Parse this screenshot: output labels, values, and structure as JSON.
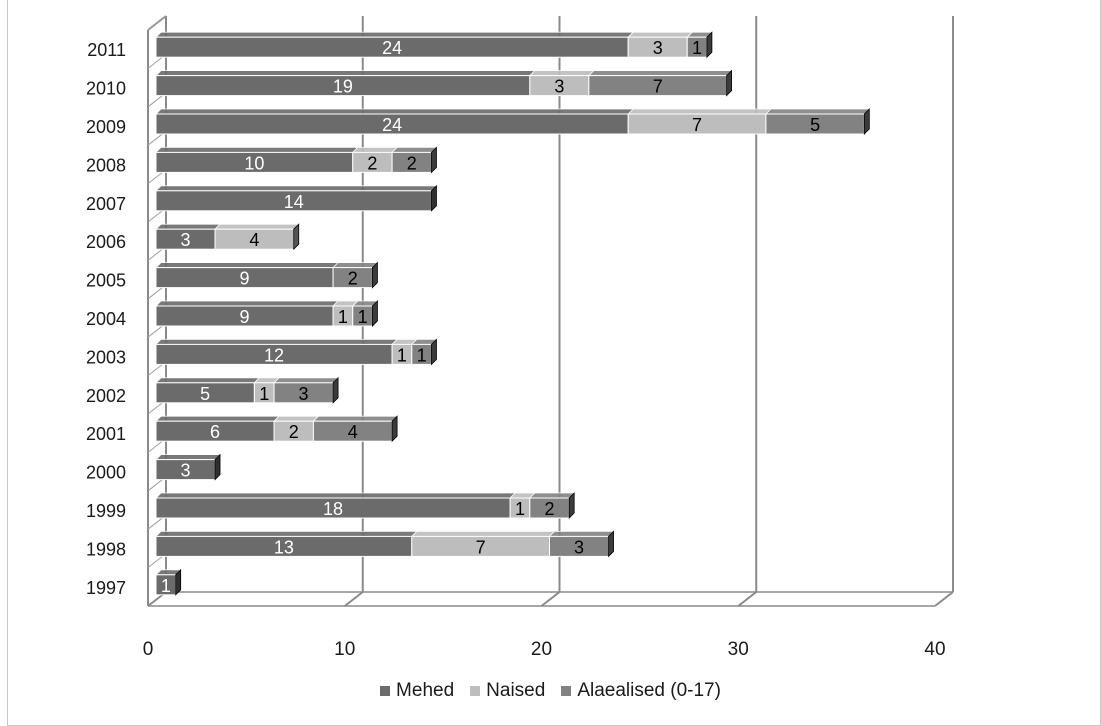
{
  "chart_data": {
    "type": "bar",
    "orientation": "horizontal",
    "stacked": true,
    "three_d": true,
    "title": "",
    "xlabel": "",
    "ylabel": "",
    "categories": [
      "1997",
      "1998",
      "1999",
      "2000",
      "2001",
      "2002",
      "2003",
      "2004",
      "2005",
      "2006",
      "2007",
      "2008",
      "2009",
      "2010",
      "2011"
    ],
    "xlim": [
      0,
      40
    ],
    "x_ticks": [
      "0",
      "10",
      "20",
      "30",
      "40"
    ],
    "grid": true,
    "legend_position": "bottom",
    "series": [
      {
        "name": "Mehed",
        "color": "#6b6b6b",
        "label_color": "#ffffff",
        "values": [
          1,
          13,
          18,
          3,
          6,
          5,
          12,
          9,
          9,
          3,
          14,
          10,
          24,
          19,
          24
        ]
      },
      {
        "name": "Naised",
        "color": "#bdbdbd",
        "label_color": "#000000",
        "values": [
          null,
          7,
          1,
          null,
          2,
          1,
          1,
          1,
          null,
          4,
          null,
          2,
          7,
          3,
          3
        ]
      },
      {
        "name": "Alaealised (0-17)",
        "color": "#828282",
        "label_color": "#000000",
        "values": [
          null,
          3,
          2,
          null,
          4,
          3,
          1,
          1,
          2,
          null,
          null,
          2,
          5,
          7,
          1
        ]
      }
    ]
  }
}
